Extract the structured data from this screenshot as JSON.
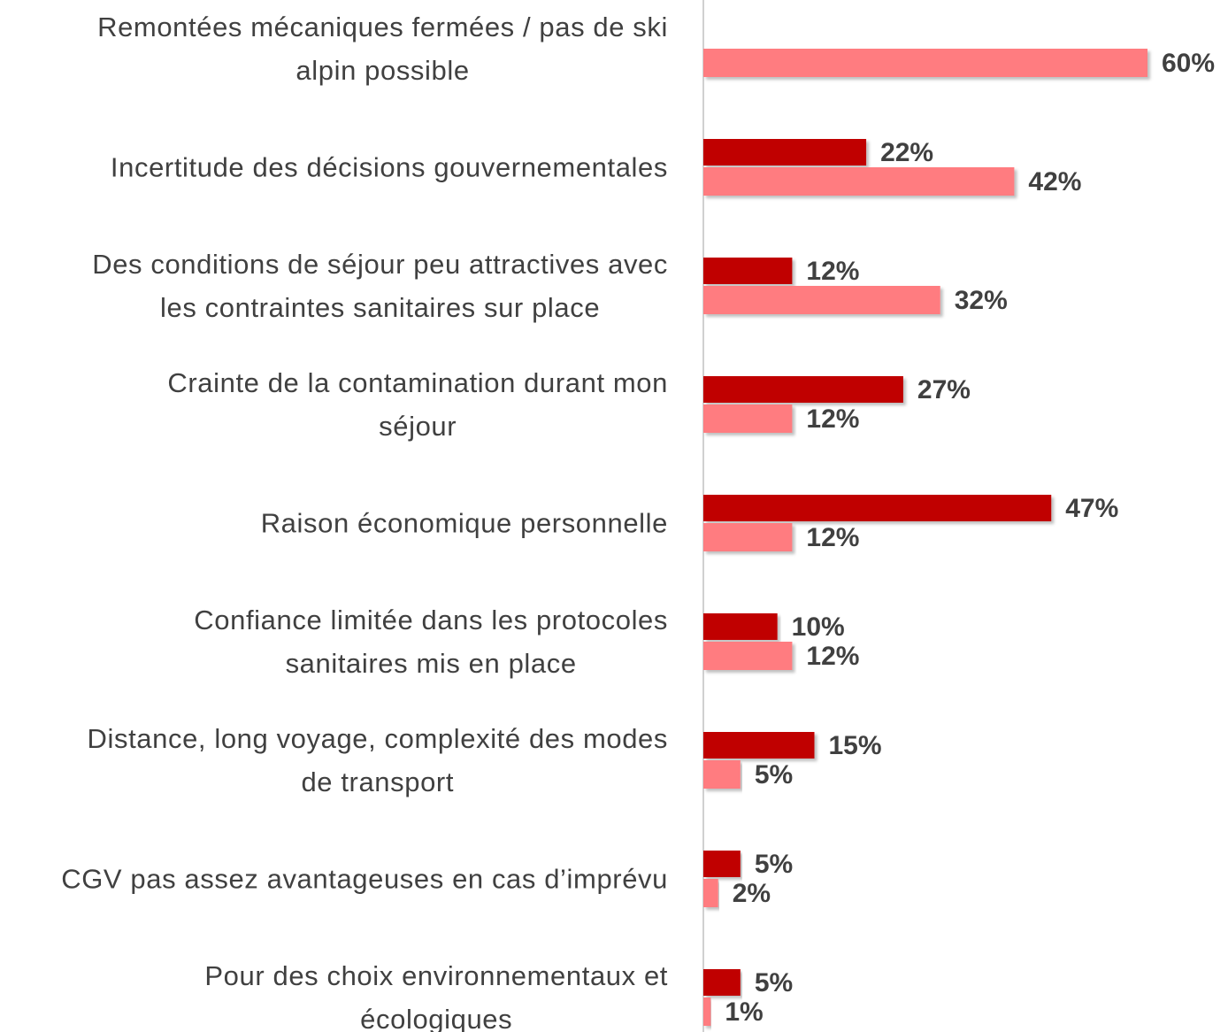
{
  "chart_data": {
    "type": "bar",
    "orientation": "horizontal",
    "categories": [
      "Remontées mécaniques fermées / pas de ski\nalpin possible",
      "Incertitude des décisions gouvernementales",
      "Des conditions de séjour peu attractives avec\nles contraintes sanitaires sur place",
      "Crainte de la contamination durant mon\nséjour",
      "Raison économique personnelle",
      "Confiance limitée dans les protocoles\nsanitaires mis en place",
      "Distance, long voyage, complexité des modes\nde transport",
      "CGV pas assez avantageuses en cas d’imprévu",
      "Pour des choix environnementaux et\nécologiques"
    ],
    "series": [
      {
        "color": "#c00000",
        "values": [
          null,
          22,
          12,
          27,
          47,
          10,
          15,
          5,
          5
        ],
        "value_labels": [
          null,
          "22%",
          "12%",
          "27%",
          "47%",
          "10%",
          "15%",
          "5%",
          "5%"
        ]
      },
      {
        "color": "#ff7c80",
        "values": [
          60,
          42,
          32,
          12,
          12,
          12,
          5,
          2,
          1
        ],
        "value_labels": [
          "60%",
          "42%",
          "32%",
          "12%",
          "12%",
          "12%",
          "5%",
          "2%",
          "1%"
        ]
      }
    ],
    "xlim": [
      0,
      60
    ]
  }
}
